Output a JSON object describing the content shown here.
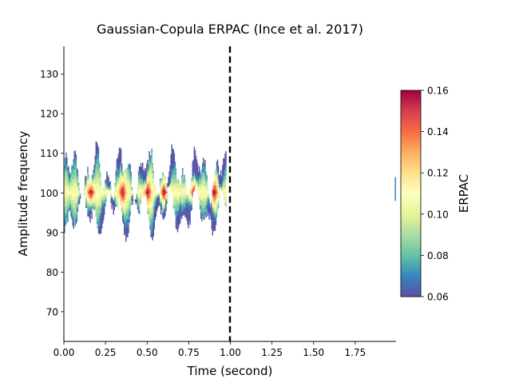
{
  "chart_data": {
    "type": "heatmap",
    "title": "Gaussian-Copula ERPAC (Ince et al. 2017)",
    "xlabel": "Time (second)",
    "ylabel": "Amplitude frequency",
    "xlim": [
      0.0,
      1.995
    ],
    "ylim": [
      62.5,
      137.0
    ],
    "x_ticks": [
      0.0,
      0.25,
      0.5,
      0.75,
      1.0,
      1.25,
      1.5,
      1.75
    ],
    "x_tick_labels": [
      "0.00",
      "0.25",
      "0.50",
      "0.75",
      "1.00",
      "1.25",
      "1.50",
      "1.75"
    ],
    "y_ticks": [
      70,
      80,
      90,
      100,
      110,
      120,
      130
    ],
    "y_tick_labels": [
      "70",
      "80",
      "90",
      "100",
      "110",
      "120",
      "130"
    ],
    "vline": {
      "x": 1.0,
      "style": "dashed",
      "color": "#000000"
    },
    "grid": false,
    "colormap": "Spectral_r",
    "colorbar": {
      "label": "ERPAC",
      "vmin": 0.06,
      "vmax": 0.16,
      "ticks": [
        0.06,
        0.08,
        0.1,
        0.12,
        0.14,
        0.16
      ],
      "tick_labels": [
        "0.06",
        "0.08",
        "0.10",
        "0.12",
        "0.14",
        "0.16"
      ]
    },
    "region": {
      "x_range": [
        0.0,
        0.97
      ],
      "center_freq": 100,
      "band_low_min": 87.5,
      "band_high_max": 116,
      "peak_times": [
        0.16,
        0.35,
        0.5,
        0.6,
        0.78,
        0.9
      ]
    }
  }
}
